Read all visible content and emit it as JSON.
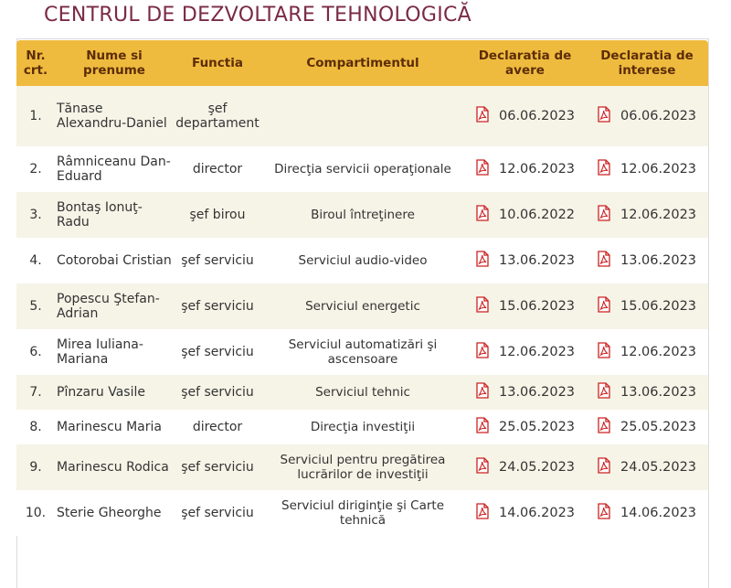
{
  "page": {
    "title": "CENTRUL DE DEZVOLTARE TEHNOLOGICĂ"
  },
  "colors": {
    "title": "#7a2a46",
    "header_bg": "#efbb3e",
    "header_text": "#5d2d08",
    "row_alt": "#f6f4e7",
    "pdf_icon": "#cc2222"
  },
  "table": {
    "headers": {
      "nr": "Nr. crt.",
      "nume": "Nume si prenume",
      "functia": "Functia",
      "compartiment": "Compartimentul",
      "avere": "Declaratia de avere",
      "interese": "Declaratia de interese"
    },
    "rows": [
      {
        "nr": "1.",
        "nume": "Tănase Alexandru-Daniel",
        "functia": "şef departament",
        "compartiment": "",
        "avere": "06.06.2023",
        "interese": "06.06.2023"
      },
      {
        "nr": "2.",
        "nume": "Râmniceanu Dan-Eduard",
        "functia": "director",
        "compartiment": "Direcţia servicii operaţionale",
        "avere": "12.06.2023",
        "interese": "12.06.2023"
      },
      {
        "nr": "3.",
        "nume": "Bontaş Ionuţ-Radu",
        "functia": "şef birou",
        "compartiment": "Biroul întreţinere",
        "avere": "10.06.2022",
        "interese": "12.06.2023"
      },
      {
        "nr": "4.",
        "nume": "Cotorobai Cristian",
        "functia": "şef serviciu",
        "compartiment": "Serviciul audio-video",
        "avere": "13.06.2023",
        "interese": "13.06.2023"
      },
      {
        "nr": "5.",
        "nume": "Popescu Ştefan-Adrian",
        "functia": "şef serviciu",
        "compartiment": "Serviciul energetic",
        "avere": "15.06.2023",
        "interese": "15.06.2023"
      },
      {
        "nr": "6.",
        "nume": "Mirea Iuliana-Mariana",
        "functia": "şef serviciu",
        "compartiment": "Serviciul automatizări şi ascensoare",
        "avere": "12.06.2023",
        "interese": "12.06.2023"
      },
      {
        "nr": "7.",
        "nume": "Pînzaru Vasile",
        "functia": "şef serviciu",
        "compartiment": "Serviciul tehnic",
        "avere": "13.06.2023",
        "interese": "13.06.2023"
      },
      {
        "nr": "8.",
        "nume": "Marinescu Maria",
        "functia": "director",
        "compartiment": "Direcţia investiţii",
        "avere": "25.05.2023",
        "interese": "25.05.2023"
      },
      {
        "nr": "9.",
        "nume": "Marinescu Rodica",
        "functia": "şef serviciu",
        "compartiment": "Serviciul pentru pregătirea lucrărilor de investiţii",
        "avere": "24.05.2023",
        "interese": "24.05.2023"
      },
      {
        "nr": "10.",
        "nume": "Sterie Gheorghe",
        "functia": "şef serviciu",
        "compartiment": "Serviciul diriginţie şi Carte tehnică",
        "avere": "14.06.2023",
        "interese": "14.06.2023"
      }
    ],
    "document_icon": "pdf-file-icon"
  }
}
